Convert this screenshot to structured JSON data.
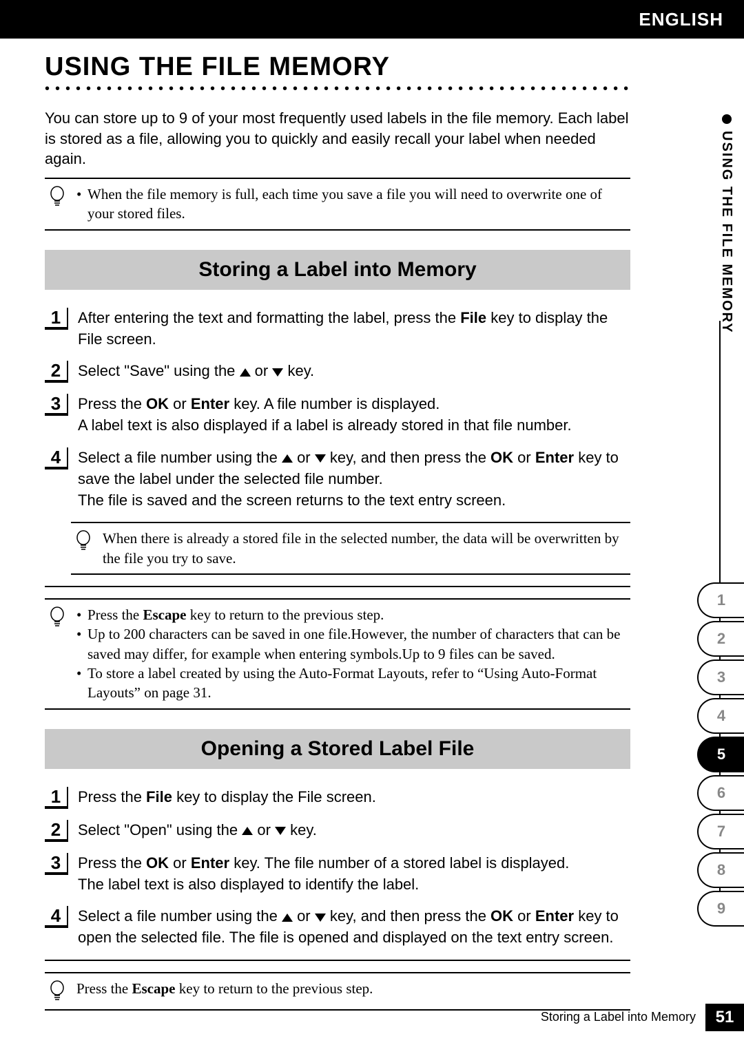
{
  "header": {
    "language": "ENGLISH"
  },
  "main_title": "USING THE FILE MEMORY",
  "intro": "You can store up to 9 of your most frequently used labels in the file memory. Each label is stored as a file, allowing you to quickly and easily recall your label when needed again.",
  "top_note": "When the file memory is full, each time you save a file you will need to overwrite one of your stored files.",
  "section_storing": {
    "title": "Storing a Label into Memory",
    "steps": {
      "s1": {
        "num": "1",
        "a": "After entering the text and formatting the label, press the ",
        "b1": "File",
        "c": " key to display the File screen."
      },
      "s2": {
        "num": "2",
        "a": "Select \"Save\" using the ",
        "c": " or ",
        "e": " key."
      },
      "s3": {
        "num": "3",
        "a": "Press the ",
        "b1": "OK",
        "c": " or ",
        "b2": "Enter",
        "d": " key. A file number is displayed.",
        "extra": "A label text is also displayed if a label is already stored in that file number."
      },
      "s4": {
        "num": "4",
        "a": "Select a file number using the ",
        "c": " or ",
        "e": " key, and then press the ",
        "b1": "OK",
        "f": " or ",
        "b2": "Enter",
        "g": " key to save the label under the selected file number.",
        "extra": "The file is saved and the screen returns to the text entry screen."
      }
    },
    "inner_note": "When there is already a stored file in the selected number, the data will be overwritten by the file you try to save.",
    "bottom_note": {
      "li1a": "Press the ",
      "li1b": "Escape",
      "li1c": " key to return to the previous step.",
      "li2": "Up to 200 characters can be saved in one file.However, the number of characters that can be saved may differ, for example when entering symbols.Up to 9 files can be saved.",
      "li3": "To store a label created by using the Auto-Format Layouts, refer to “Using Auto-Format Layouts” on page 31."
    }
  },
  "section_opening": {
    "title": "Opening a Stored Label File",
    "steps": {
      "s1": {
        "num": "1",
        "a": "Press the ",
        "b1": "File",
        "c": " key to display the File screen."
      },
      "s2": {
        "num": "2",
        "a": "Select \"Open\" using the ",
        "c": " or ",
        "e": " key."
      },
      "s3": {
        "num": "3",
        "a": "Press the ",
        "b1": "OK",
        "c": " or ",
        "b2": "Enter",
        "d": " key. The file number of a stored label is displayed.",
        "extra": "The label text is also displayed to identify the label."
      },
      "s4": {
        "num": "4",
        "a": "Select a file number using the ",
        "c": " or ",
        "e": " key, and then press the ",
        "b1": "OK",
        "f": " or ",
        "b2": "Enter",
        "g": " key to open the selected file. The file is opened and displayed on the text entry screen."
      }
    },
    "bottom_note": {
      "a": "Press the ",
      "b": "Escape",
      "c": " key to return to the previous step."
    }
  },
  "side": {
    "vlabel": "USING THE FILE MEMORY",
    "tabs": [
      "1",
      "2",
      "3",
      "4",
      "5",
      "6",
      "7",
      "8",
      "9"
    ],
    "active_index": 4
  },
  "footer": {
    "label": "Storing a Label into Memory",
    "page": "51"
  },
  "colors": {
    "topbar_bg": "#000000",
    "topbar_fg": "#ffffff",
    "section_bg": "#c9c9c9",
    "tab_inactive_fg": "#888888"
  }
}
